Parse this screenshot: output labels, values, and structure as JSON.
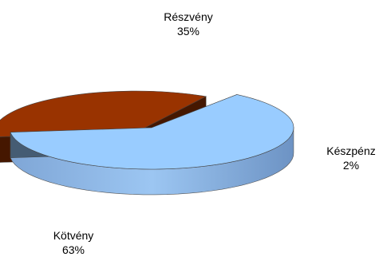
{
  "chart_data": {
    "type": "pie",
    "style": "3d-exploded",
    "slices": [
      {
        "name": "Részvény",
        "percent_label": "35%",
        "value": 35,
        "color": "#993300"
      },
      {
        "name": "Készpénz",
        "percent_label": "2%",
        "value": 2,
        "color": "#333366"
      },
      {
        "name": "Kötvény",
        "percent_label": "63%",
        "value": 63,
        "color": "#99ccff"
      }
    ]
  }
}
